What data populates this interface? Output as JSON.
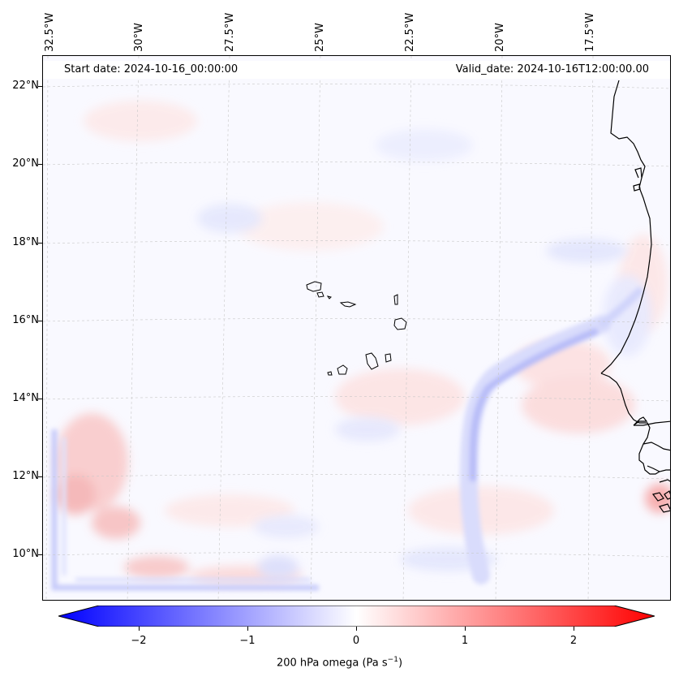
{
  "header": {
    "start_date": "Start date: 2024-10-16_00:00:00",
    "valid_date": "Valid_date: 2024-10-16T12:00:00.00"
  },
  "axes": {
    "longitude_labels": [
      "32.5°W",
      "30°W",
      "27.5°W",
      "25°W",
      "22.5°W",
      "20°W",
      "17.5°W"
    ],
    "latitude_labels": [
      "22°N",
      "20°N",
      "18°N",
      "16°N",
      "14°N",
      "12°N",
      "10°N"
    ]
  },
  "colorbar": {
    "ticks": [
      "−2",
      "−1",
      "0",
      "1",
      "2"
    ],
    "label_main": "200 hPa omega (Pa s",
    "label_sup": "−1",
    "label_end": ")",
    "range": [
      -2.6,
      2.6
    ],
    "colormap": "bwr",
    "color_low": "#0000ff",
    "color_mid": "#ffffff",
    "color_high": "#ff0000"
  },
  "map": {
    "coastline_color": "#000000",
    "gridline_color": "#c8c8c8",
    "features": [
      "Cape Verde islands",
      "West African coastline (Mauritania, Senegal, Gambia, Guinea-Bissau)"
    ]
  }
}
